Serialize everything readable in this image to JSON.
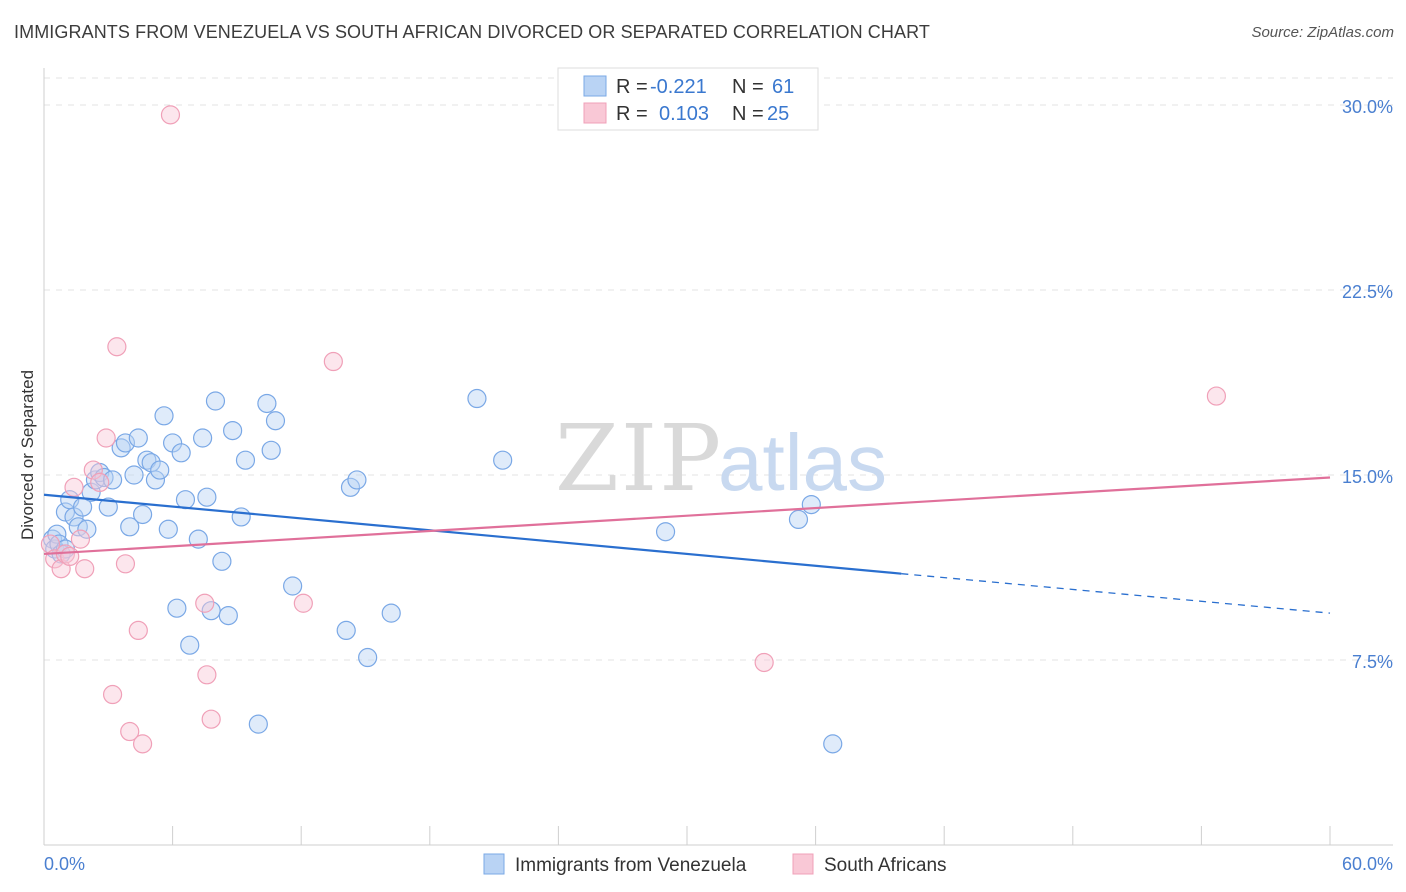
{
  "title": "IMMIGRANTS FROM VENEZUELA VS SOUTH AFRICAN DIVORCED OR SEPARATED CORRELATION CHART",
  "source": "Source: ZipAtlas.com",
  "watermark": {
    "zip": "ZIP",
    "atlas": "atlas"
  },
  "chart_data": {
    "type": "scatter",
    "title": "IMMIGRANTS FROM VENEZUELA VS SOUTH AFRICAN DIVORCED OR SEPARATED CORRELATION CHART",
    "xlabel": "",
    "ylabel": "Divorced or Separated",
    "xlim": [
      0,
      60
    ],
    "ylim": [
      0,
      31.5
    ],
    "x_tick_labels": {
      "min": "0.0%",
      "max": "60.0%"
    },
    "y_ticks": [
      7.5,
      15.0,
      22.5,
      30.0
    ],
    "y_tick_labels": [
      "7.5%",
      "15.0%",
      "22.5%",
      "30.0%"
    ],
    "grid": "horizontal dashed",
    "legend_placement": "top-center",
    "stats": [
      {
        "r_label": "R =",
        "r": "-0.221",
        "n_label": "N =",
        "n": "61"
      },
      {
        "r_label": "R =",
        "r": "0.103",
        "n_label": "N =",
        "n": "25"
      }
    ],
    "series": [
      {
        "name": "Immigrants from Venezuela",
        "color": "#6fa3e8",
        "line_color": "#2a6fcf",
        "trend": {
          "x0": 0,
          "y0": 14.2,
          "x1": 40,
          "y1": 11.0,
          "dash_to_x": 60,
          "dash_to_y": 9.4
        },
        "points": [
          [
            0.4,
            12.4
          ],
          [
            0.5,
            12.0
          ],
          [
            0.6,
            12.6
          ],
          [
            0.7,
            12.2
          ],
          [
            0.8,
            11.8
          ],
          [
            1.0,
            12.0
          ],
          [
            1.0,
            13.5
          ],
          [
            1.2,
            14.0
          ],
          [
            1.4,
            13.3
          ],
          [
            1.6,
            12.9
          ],
          [
            1.8,
            13.7
          ],
          [
            2.0,
            12.8
          ],
          [
            2.2,
            14.3
          ],
          [
            2.4,
            14.8
          ],
          [
            2.6,
            15.1
          ],
          [
            2.8,
            14.9
          ],
          [
            3.0,
            13.7
          ],
          [
            3.2,
            14.8
          ],
          [
            3.6,
            16.1
          ],
          [
            3.8,
            16.3
          ],
          [
            4.0,
            12.9
          ],
          [
            4.2,
            15.0
          ],
          [
            4.4,
            16.5
          ],
          [
            4.6,
            13.4
          ],
          [
            4.8,
            15.6
          ],
          [
            5.0,
            15.5
          ],
          [
            5.2,
            14.8
          ],
          [
            5.4,
            15.2
          ],
          [
            5.6,
            17.4
          ],
          [
            5.8,
            12.8
          ],
          [
            6.0,
            16.3
          ],
          [
            6.2,
            9.6
          ],
          [
            6.4,
            15.9
          ],
          [
            6.6,
            14.0
          ],
          [
            6.8,
            8.1
          ],
          [
            7.2,
            12.4
          ],
          [
            7.4,
            16.5
          ],
          [
            7.6,
            14.1
          ],
          [
            7.8,
            9.5
          ],
          [
            8.0,
            18.0
          ],
          [
            8.3,
            11.5
          ],
          [
            8.6,
            9.3
          ],
          [
            8.8,
            16.8
          ],
          [
            9.2,
            13.3
          ],
          [
            9.4,
            15.6
          ],
          [
            10.0,
            4.9
          ],
          [
            10.4,
            17.9
          ],
          [
            10.6,
            16.0
          ],
          [
            10.8,
            17.2
          ],
          [
            11.6,
            10.5
          ],
          [
            14.1,
            8.7
          ],
          [
            14.3,
            14.5
          ],
          [
            14.6,
            14.8
          ],
          [
            15.1,
            7.6
          ],
          [
            16.2,
            9.4
          ],
          [
            20.2,
            18.1
          ],
          [
            21.4,
            15.6
          ],
          [
            29.0,
            12.7
          ],
          [
            35.2,
            13.2
          ],
          [
            35.8,
            13.8
          ],
          [
            36.8,
            4.1
          ]
        ]
      },
      {
        "name": "South Africans",
        "color": "#f4a0b8",
        "line_color": "#e0709a",
        "trend": {
          "x0": 0,
          "y0": 11.8,
          "x1": 60,
          "y1": 14.9
        },
        "points": [
          [
            0.3,
            12.2
          ],
          [
            0.5,
            11.6
          ],
          [
            0.8,
            11.2
          ],
          [
            1.0,
            11.8
          ],
          [
            1.2,
            11.7
          ],
          [
            1.4,
            14.5
          ],
          [
            1.7,
            12.4
          ],
          [
            1.9,
            11.2
          ],
          [
            2.3,
            15.2
          ],
          [
            2.6,
            14.7
          ],
          [
            2.9,
            16.5
          ],
          [
            3.2,
            6.1
          ],
          [
            3.4,
            20.2
          ],
          [
            3.8,
            11.4
          ],
          [
            4.0,
            4.6
          ],
          [
            4.4,
            8.7
          ],
          [
            4.6,
            4.1
          ],
          [
            5.9,
            29.6
          ],
          [
            7.5,
            9.8
          ],
          [
            7.6,
            6.9
          ],
          [
            7.8,
            5.1
          ],
          [
            12.1,
            9.8
          ],
          [
            13.5,
            19.6
          ],
          [
            33.6,
            7.4
          ],
          [
            54.7,
            18.2
          ]
        ]
      }
    ]
  }
}
